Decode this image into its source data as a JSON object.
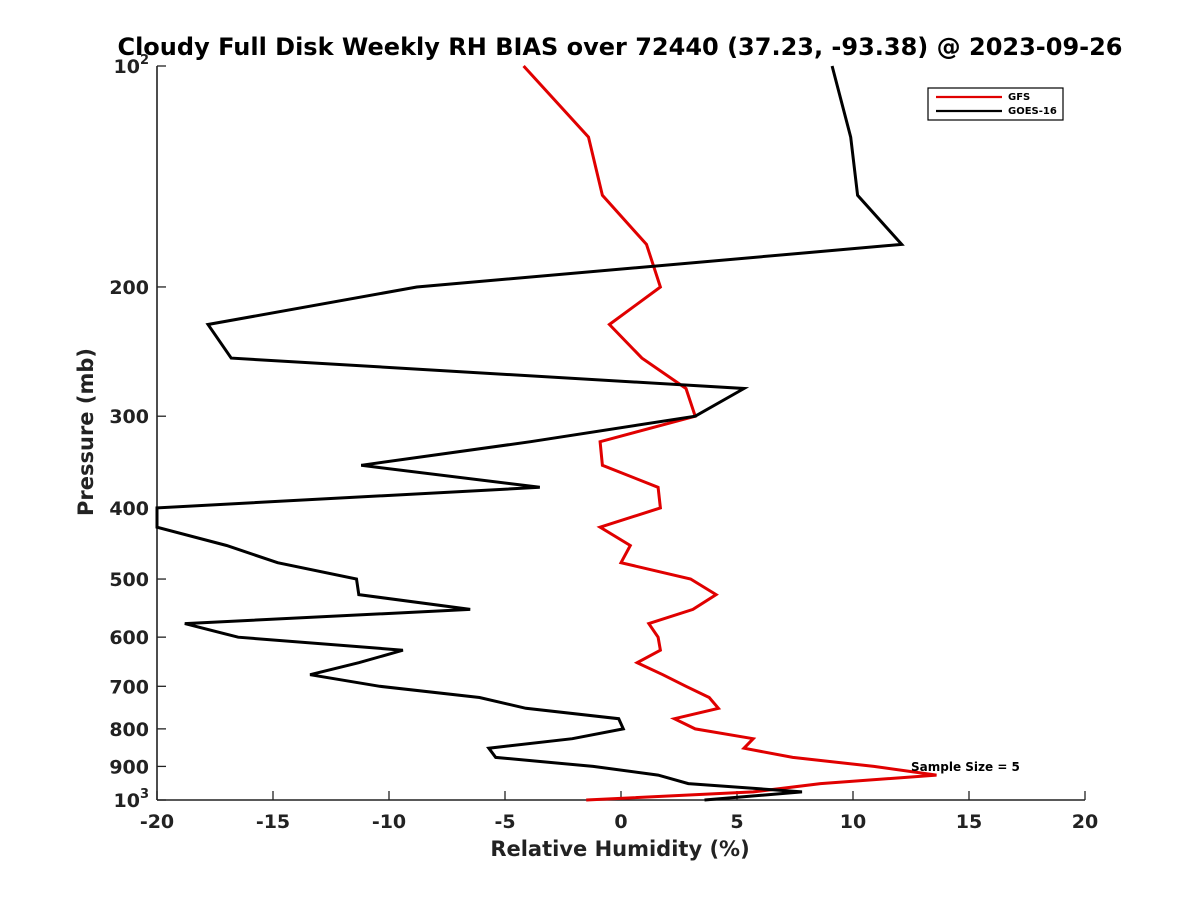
{
  "chart_data": {
    "type": "line",
    "title": "Cloudy Full Disk Weekly RH BIAS over 72440 (37.23, -93.38) @ 2023-09-26",
    "xlabel": "Relative Humidity (%)",
    "ylabel": "Pressure (mb)",
    "xlim": [
      -20,
      20
    ],
    "ylim": [
      100,
      1000
    ],
    "yscale": "log",
    "y_reversed": true,
    "xticks": [
      -20,
      -15,
      -10,
      -5,
      0,
      5,
      10,
      15,
      20
    ],
    "yticks": [
      {
        "value": 100,
        "base": "10",
        "exp": "2"
      },
      {
        "value": 200,
        "label": "200"
      },
      {
        "value": 300,
        "label": "300"
      },
      {
        "value": 400,
        "label": "400"
      },
      {
        "value": 500,
        "label": "500"
      },
      {
        "value": 600,
        "label": "600"
      },
      {
        "value": 700,
        "label": "700"
      },
      {
        "value": 800,
        "label": "800"
      },
      {
        "value": 900,
        "label": "900"
      },
      {
        "value": 1000,
        "base": "10",
        "exp": "3"
      }
    ],
    "grid": false,
    "legend_position": "top-right",
    "annotation": "Sample Size = 5",
    "series": [
      {
        "name": "GFS",
        "color": "#e00000",
        "points": [
          [
            -4.2,
            100
          ],
          [
            -1.4,
            125
          ],
          [
            -0.8,
            150
          ],
          [
            1.1,
            175
          ],
          [
            1.7,
            200
          ],
          [
            -0.5,
            225
          ],
          [
            0.9,
            250
          ],
          [
            2.8,
            275
          ],
          [
            3.2,
            300
          ],
          [
            -0.9,
            325
          ],
          [
            -0.8,
            350
          ],
          [
            1.6,
            375
          ],
          [
            1.7,
            400
          ],
          [
            -0.9,
            425
          ],
          [
            0.4,
            450
          ],
          [
            0.0,
            475
          ],
          [
            3.0,
            500
          ],
          [
            4.1,
            525
          ],
          [
            3.1,
            550
          ],
          [
            1.2,
            575
          ],
          [
            1.6,
            600
          ],
          [
            1.7,
            625
          ],
          [
            0.7,
            650
          ],
          [
            1.8,
            675
          ],
          [
            2.8,
            700
          ],
          [
            3.8,
            725
          ],
          [
            4.2,
            750
          ],
          [
            2.3,
            775
          ],
          [
            3.2,
            800
          ],
          [
            5.7,
            825
          ],
          [
            5.3,
            850
          ],
          [
            7.4,
            875
          ],
          [
            10.9,
            900
          ],
          [
            13.6,
            925
          ],
          [
            8.6,
            950
          ],
          [
            5.7,
            975
          ],
          [
            -1.5,
            1000
          ]
        ]
      },
      {
        "name": "GOES-16",
        "color": "#000000",
        "points": [
          [
            9.1,
            100
          ],
          [
            9.9,
            125
          ],
          [
            10.2,
            150
          ],
          [
            12.1,
            175
          ],
          [
            -8.8,
            200
          ],
          [
            -17.8,
            225
          ],
          [
            -16.8,
            250
          ],
          [
            5.3,
            275
          ],
          [
            3.2,
            300
          ],
          [
            -3.9,
            325
          ],
          [
            -11.2,
            350
          ],
          [
            -3.5,
            375
          ],
          [
            -20.0,
            400
          ],
          [
            -20.0,
            425
          ],
          [
            -17.0,
            450
          ],
          [
            -14.8,
            475
          ],
          [
            -11.4,
            500
          ],
          [
            -11.3,
            525
          ],
          [
            -6.5,
            550
          ],
          [
            -18.8,
            575
          ],
          [
            -16.5,
            600
          ],
          [
            -9.4,
            625
          ],
          [
            -11.3,
            650
          ],
          [
            -13.4,
            675
          ],
          [
            -10.4,
            700
          ],
          [
            -6.1,
            725
          ],
          [
            -4.1,
            750
          ],
          [
            -0.1,
            775
          ],
          [
            0.1,
            800
          ],
          [
            -2.1,
            825
          ],
          [
            -5.7,
            850
          ],
          [
            -5.4,
            875
          ],
          [
            -1.2,
            900
          ],
          [
            1.6,
            925
          ],
          [
            2.9,
            950
          ],
          [
            7.8,
            975
          ],
          [
            3.6,
            1000
          ]
        ]
      }
    ]
  }
}
